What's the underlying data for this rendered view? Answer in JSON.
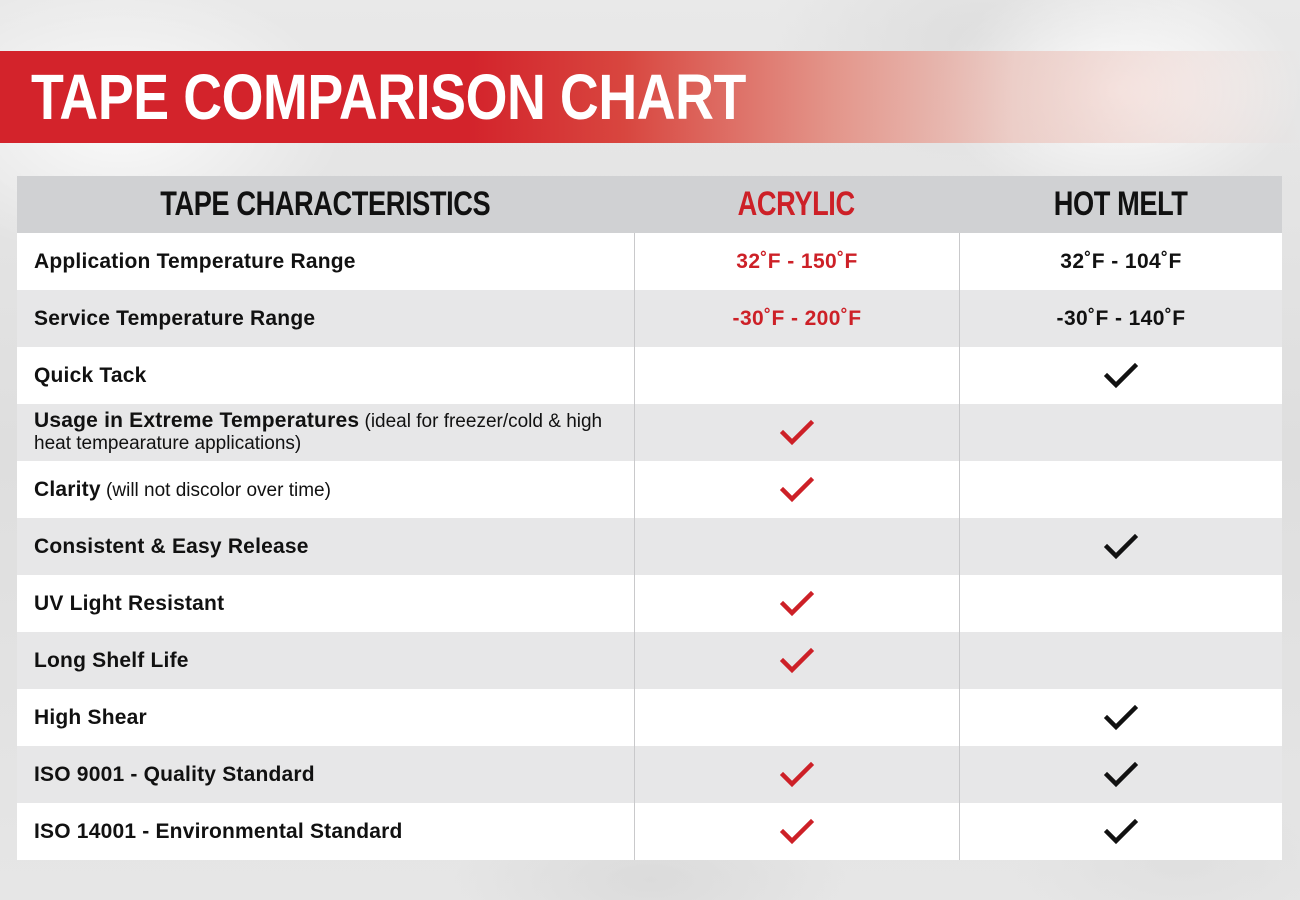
{
  "title": "TAPE COMPARISON CHART",
  "columns": {
    "characteristics": "TAPE CHARACTERISTICS",
    "acrylic": "ACRYLIC",
    "hot_melt": "HOT MELT"
  },
  "colors": {
    "accent_red": "#cd2027",
    "check_black": "#111111"
  },
  "rows": [
    {
      "label": "Application Temperature Range",
      "note": "",
      "acrylic": "32˚F - 150˚F",
      "hot_melt": "32˚F - 104˚F"
    },
    {
      "label": "Service Temperature Range",
      "note": "",
      "acrylic": "-30˚F - 200˚F",
      "hot_melt": "-30˚F - 140˚F"
    },
    {
      "label": "Quick Tack",
      "note": "",
      "acrylic_check": false,
      "hot_melt_check": true
    },
    {
      "label": "Usage in Extreme Temperatures",
      "note": " (ideal for freezer/cold & high heat tempearature applications)",
      "acrylic_check": true,
      "hot_melt_check": false
    },
    {
      "label": "Clarity",
      "note": " (will not discolor over time)",
      "acrylic_check": true,
      "hot_melt_check": false
    },
    {
      "label": "Consistent & Easy Release",
      "note": "",
      "acrylic_check": false,
      "hot_melt_check": true
    },
    {
      "label": "UV Light Resistant",
      "note": "",
      "acrylic_check": true,
      "hot_melt_check": false
    },
    {
      "label": "Long Shelf Life",
      "note": "",
      "acrylic_check": true,
      "hot_melt_check": false
    },
    {
      "label": "High Shear",
      "note": "",
      "acrylic_check": false,
      "hot_melt_check": true
    },
    {
      "label": "ISO 9001 - Quality Standard",
      "note": "",
      "acrylic_check": true,
      "hot_melt_check": true
    },
    {
      "label": "ISO 14001 - Environmental Standard",
      "note": "",
      "acrylic_check": true,
      "hot_melt_check": true
    }
  ]
}
